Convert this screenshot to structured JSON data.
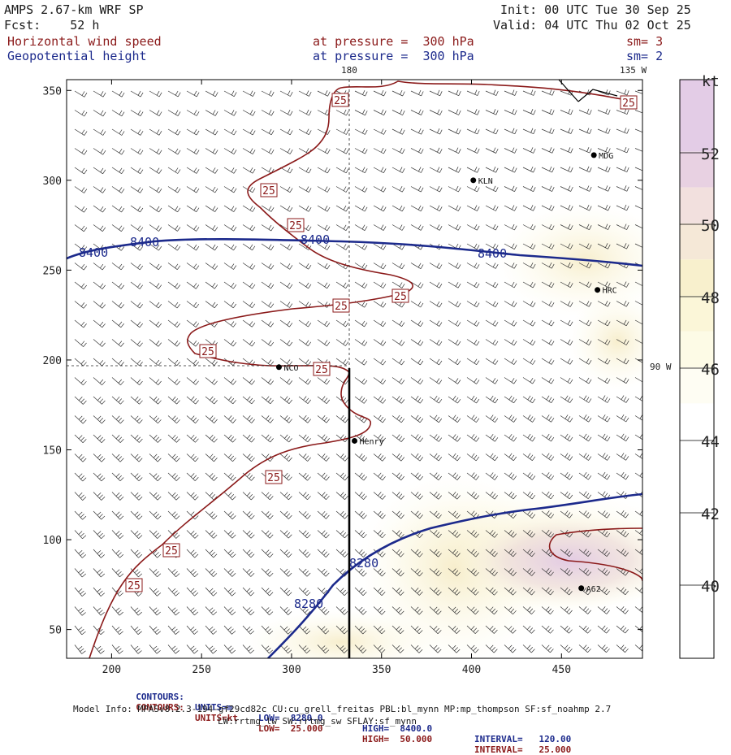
{
  "header": {
    "title": "AMPS 2.67-km WRF SP",
    "forecast": "Fcst:    52 h",
    "init": "Init: 00 UTC Tue 30 Sep 25",
    "valid": "Valid: 04 UTC Thu 02 Oct 25",
    "field1_name": "Horizontal wind speed",
    "field1_level": "at pressure =  300 hPa",
    "field1_sm": "sm= 3",
    "field2_name": "Geopotential height",
    "field2_level": "at pressure =  300 hPa",
    "field2_sm": "sm= 2"
  },
  "map_labels": {
    "lon_top": "180",
    "lon_top_right": "135 W",
    "lon_right": "90 W"
  },
  "stations": [
    {
      "name": "MDG"
    },
    {
      "name": "KLN"
    },
    {
      "name": "HRC"
    },
    {
      "name": "NCO"
    },
    {
      "name": "Henry"
    },
    {
      "name": "A62"
    }
  ],
  "colorbar": {
    "unit": "kt",
    "levels": [
      "52",
      "50",
      "48",
      "46",
      "44",
      "42",
      "40"
    ],
    "colors": [
      "#ffffff",
      "#fdfbe6",
      "#f8f2cf",
      "#f5ead3",
      "#efe0dd",
      "#e9d3e6",
      "#e2c9e4"
    ]
  },
  "chart_data": {
    "type": "contour",
    "title": "Horizontal wind speed / Geopotential height at 300 hPa",
    "xlim": [
      175,
      495
    ],
    "ylim": [
      34,
      356
    ],
    "x_ticks": [
      200,
      250,
      300,
      350,
      400,
      450
    ],
    "y_ticks": [
      50,
      100,
      150,
      200,
      250,
      300,
      350
    ],
    "height_contours": [
      {
        "value": 8400,
        "label": "8400",
        "units": "m"
      },
      {
        "value": 8280,
        "label": "8280",
        "units": "m"
      }
    ],
    "wind_contours": [
      {
        "value": 25,
        "label": "25",
        "units": "kt"
      }
    ],
    "wind_shading_kt": [
      40,
      42,
      44,
      46,
      48,
      50,
      52
    ],
    "stations": [
      {
        "name": "MDG",
        "x": 468,
        "y": 314
      },
      {
        "name": "KLN",
        "x": 401,
        "y": 300
      },
      {
        "name": "HRC",
        "x": 470,
        "y": 239
      },
      {
        "name": "NCO",
        "x": 293,
        "y": 196
      },
      {
        "name": "Henry",
        "x": 335,
        "y": 155
      },
      {
        "name": "A62",
        "x": 461,
        "y": 73
      }
    ],
    "cross_hair": {
      "x": 333,
      "y": 196
    }
  },
  "footer": {
    "c1_label": "CONTOURS:",
    "c1_units": "UNITS=m",
    "c1_low": "LOW=  8280.0",
    "c1_high": "HIGH=  8400.0",
    "c1_interval": "INTERVAL=   120.00",
    "c2_label": "CONTOURS:",
    "c2_units": "UNITS=kt",
    "c2_low": "LOW=  25.000",
    "c2_high": "HIGH=  50.000",
    "c2_interval": "INTERVAL=   25.000",
    "model_info": "Model Info: MPASv8.2.3-194-gf29cd82c CU:cu_grell_freitas PBL:bl_mynn MP:mp_thompson SF:sf_noahmp 2.7",
    "model_info2": "LW:rrtmg_lw SW:rrtmg_sw SFLAY:sf_mynn"
  }
}
